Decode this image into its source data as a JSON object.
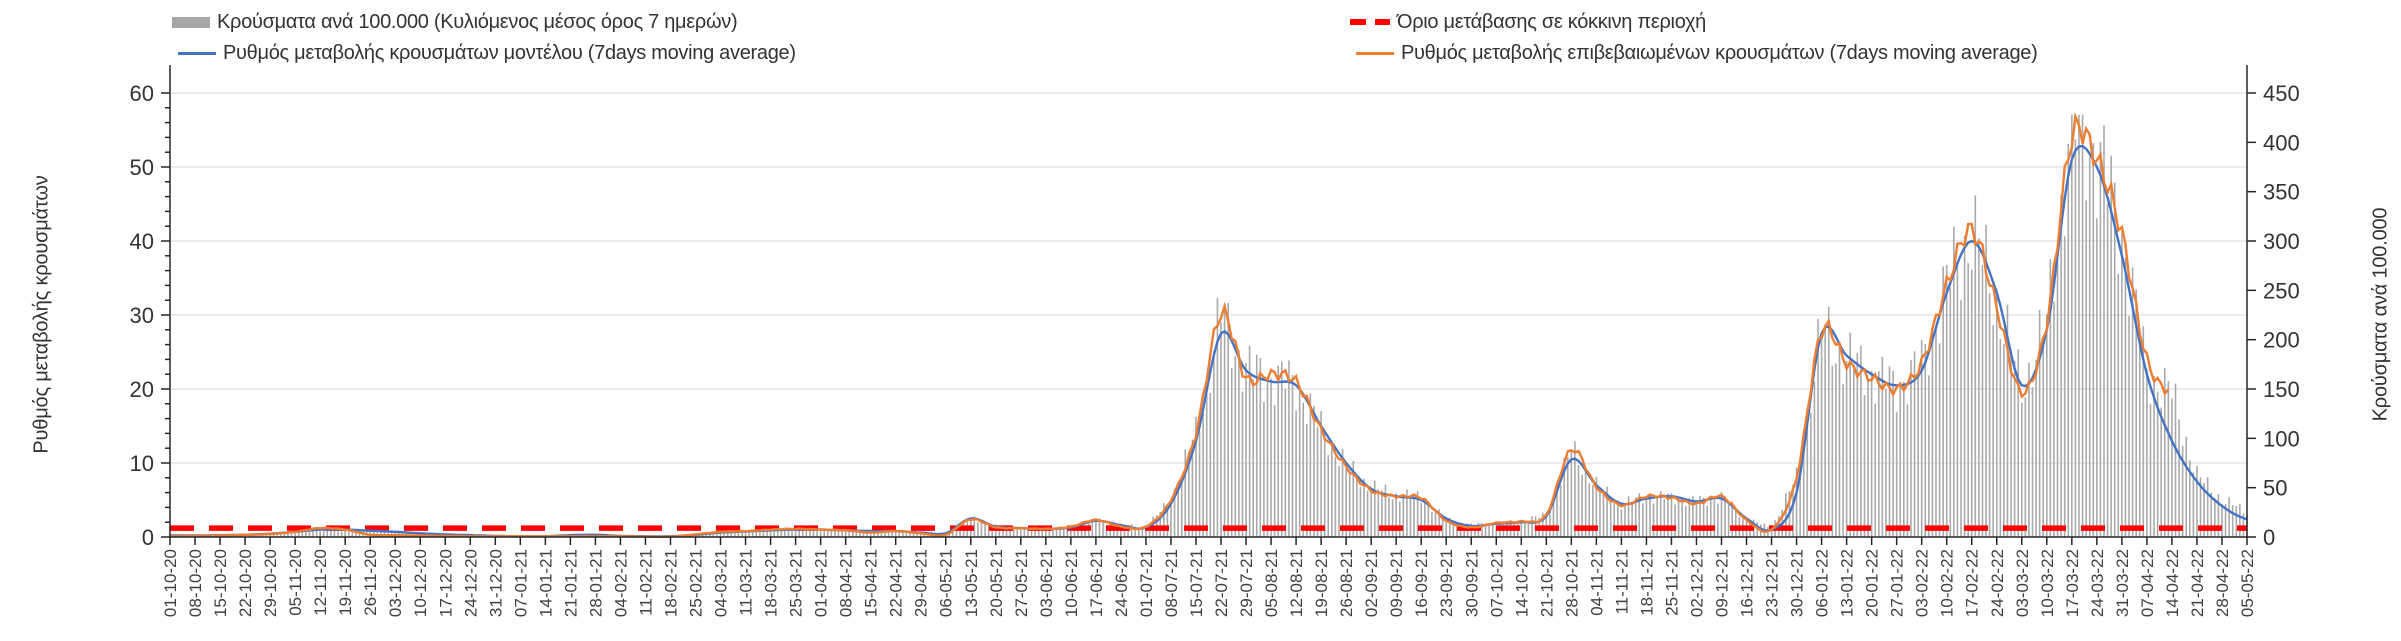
{
  "legend": {
    "items": [
      {
        "label": "Κρούσματα ανά 100.000 (Κυλιόμενος μέσος όρος 7 ημερών)",
        "marker": "bar-swatch",
        "color": "#a6a6a6"
      },
      {
        "label": "Ρυθμός μεταβολής κρουσμάτων μοντέλου (7days moving average)",
        "marker": "line",
        "color": "#4472c4"
      },
      {
        "label": "Όριο μετάβασης σε κόκκινη περιοχή",
        "marker": "dashed-line",
        "color": "#ff0000"
      },
      {
        "label": "Ρυθμός μεταβολής επιβεβαιωμένων κρουσμάτων (7days moving average)",
        "marker": "line",
        "color": "#ed7d31"
      }
    ]
  },
  "left_axis": {
    "title": "Ρυθμός μεταβολής κρουσμάτων",
    "min": 0,
    "max": 60,
    "step": 10,
    "ticks": [
      "0",
      "10",
      "20",
      "30",
      "40",
      "50",
      "60"
    ]
  },
  "right_axis": {
    "title": "Κρούσματα ανά 100.000",
    "min": 0,
    "max": 450,
    "step": 50,
    "ticks": [
      "0",
      "50",
      "100",
      "150",
      "200",
      "250",
      "300",
      "350",
      "400",
      "450"
    ]
  },
  "colors": {
    "bars": "#a9a9a9",
    "model_line": "#4472c4",
    "confirmed_line": "#ed7d31",
    "threshold": "#ff0000",
    "grid": "#d9d9d9",
    "axis": "#262626",
    "tick_text": "#333333",
    "date_text": "#404040"
  },
  "chart_data": {
    "type": "bar+line combo",
    "x_tick_interval": "weekly",
    "categories": [
      "01-10-20",
      "08-10-20",
      "15-10-20",
      "22-10-20",
      "29-10-20",
      "05-11-20",
      "12-11-20",
      "19-11-20",
      "26-11-20",
      "03-12-20",
      "10-12-20",
      "17-12-20",
      "24-12-20",
      "31-12-20",
      "07-01-21",
      "14-01-21",
      "21-01-21",
      "28-01-21",
      "04-02-21",
      "11-02-21",
      "18-02-21",
      "25-02-21",
      "04-03-21",
      "11-03-21",
      "18-03-21",
      "25-03-21",
      "01-04-21",
      "08-04-21",
      "15-04-21",
      "22-04-21",
      "29-04-21",
      "06-05-21",
      "13-05-21",
      "20-05-21",
      "27-05-21",
      "03-06-21",
      "10-06-21",
      "17-06-21",
      "24-06-21",
      "01-07-21",
      "08-07-21",
      "15-07-21",
      "22-07-21",
      "29-07-21",
      "05-08-21",
      "12-08-21",
      "19-08-21",
      "26-08-21",
      "02-09-21",
      "09-09-21",
      "16-09-21",
      "23-09-21",
      "30-09-21",
      "07-10-21",
      "14-10-21",
      "21-10-21",
      "28-10-21",
      "04-11-21",
      "11-11-21",
      "18-11-21",
      "25-11-21",
      "02-12-21",
      "09-12-21",
      "16-12-21",
      "23-12-21",
      "30-12-21",
      "06-01-22",
      "13-01-22",
      "20-01-22",
      "27-01-22",
      "03-02-22",
      "10-02-22",
      "17-02-22",
      "24-02-22",
      "03-03-22",
      "10-03-22",
      "17-03-22",
      "24-03-22",
      "31-03-22",
      "07-04-22",
      "14-04-22",
      "21-04-22",
      "28-04-22",
      "05-05-22"
    ],
    "series": [
      {
        "name": "Κρούσματα ανά 100.000 (Κυλιόμενος μέσος όρος 7 ημερών)",
        "type": "bar",
        "axis": "right",
        "values": [
          1,
          1.5,
          2,
          2.5,
          3.5,
          6,
          9,
          8,
          5.5,
          4.5,
          3.5,
          2.5,
          2,
          1.5,
          1,
          1,
          1.5,
          2,
          1.5,
          1,
          1,
          2.5,
          5,
          6,
          7.5,
          9,
          8.5,
          8,
          7,
          6.5,
          5,
          4,
          19,
          11,
          9,
          8.5,
          10,
          17,
          12,
          10,
          37,
          105,
          225,
          170,
          162,
          155,
          110,
          72,
          50,
          42,
          40,
          18,
          12,
          14,
          16,
          22,
          88,
          52,
          33,
          41,
          40,
          36,
          41,
          18,
          9,
          60,
          210,
          180,
          165,
          152,
          175,
          255,
          310,
          240,
          150,
          215,
          425,
          390,
          310,
          165,
          145,
          62,
          38,
          25
        ]
      },
      {
        "name": "Ρυθμός μεταβολής κρουσμάτων μοντέλου (7days moving average)",
        "type": "line",
        "axis": "left",
        "values": [
          0.2,
          0.2,
          0.25,
          0.3,
          0.45,
          0.7,
          1.0,
          1.0,
          0.85,
          0.7,
          0.5,
          0.35,
          0.25,
          0.15,
          0.1,
          0.1,
          0.25,
          0.3,
          0.15,
          0.1,
          0.1,
          0.3,
          0.6,
          0.75,
          0.9,
          1.0,
          1.0,
          0.9,
          0.8,
          0.8,
          0.6,
          0.5,
          2.5,
          1.4,
          1.2,
          1.1,
          1.3,
          2.2,
          1.6,
          1.3,
          4.5,
          13,
          27.5,
          22.5,
          21,
          20.5,
          15,
          10,
          6.5,
          5.5,
          5,
          2.5,
          1.5,
          1.8,
          2,
          2.8,
          10.5,
          7,
          4.5,
          5.2,
          5.5,
          4.8,
          5.2,
          2.5,
          1,
          6,
          27.5,
          24.5,
          22,
          20.5,
          22.5,
          33,
          40,
          33,
          20.5,
          28,
          51,
          50,
          38,
          22,
          13,
          7.5,
          4.2,
          2.4
        ]
      },
      {
        "name": "Ρυθμός μεταβολής επιβεβαιωμένων κρουσμάτων (7days moving average)",
        "type": "line",
        "axis": "left",
        "values": [
          0.1,
          0.15,
          0.2,
          0.3,
          0.4,
          0.7,
          1.2,
          1.0,
          0.3,
          0.25,
          0.2,
          0.15,
          0.1,
          0.1,
          0.1,
          0.1,
          0.1,
          0.1,
          0.1,
          0.05,
          0.05,
          0.35,
          0.7,
          0.8,
          1.0,
          1.1,
          1.0,
          0.9,
          0.6,
          0.8,
          0.5,
          0.3,
          2.4,
          1.3,
          1.2,
          1.1,
          1.4,
          2.3,
          1.4,
          1.4,
          5,
          14,
          30.2,
          21.5,
          22,
          21,
          14.5,
          9.5,
          6.3,
          5.5,
          5.3,
          2.2,
          1.3,
          1.9,
          2.1,
          3,
          11.8,
          6.8,
          4.3,
          5.5,
          5.3,
          4.5,
          5.5,
          2.3,
          1,
          8,
          27.8,
          23.5,
          21.5,
          20,
          23.5,
          34,
          41.5,
          31,
          19.5,
          29,
          54,
          51,
          41,
          24,
          19.5,
          null,
          null,
          null
        ]
      },
      {
        "name": "Όριο μετάβασης σε κόκκινη περιοχή",
        "type": "threshold-line",
        "axis": "left",
        "value": 1.2
      }
    ],
    "title": "",
    "xlabel": "",
    "ylabel_left": "Ρυθμός μεταβολής κρουσμάτων",
    "ylabel_right": "Κρούσματα ανά 100.000",
    "ylim_left": [
      0,
      60
    ],
    "ylim_right": [
      0,
      450
    ],
    "grid": "horizontal"
  }
}
